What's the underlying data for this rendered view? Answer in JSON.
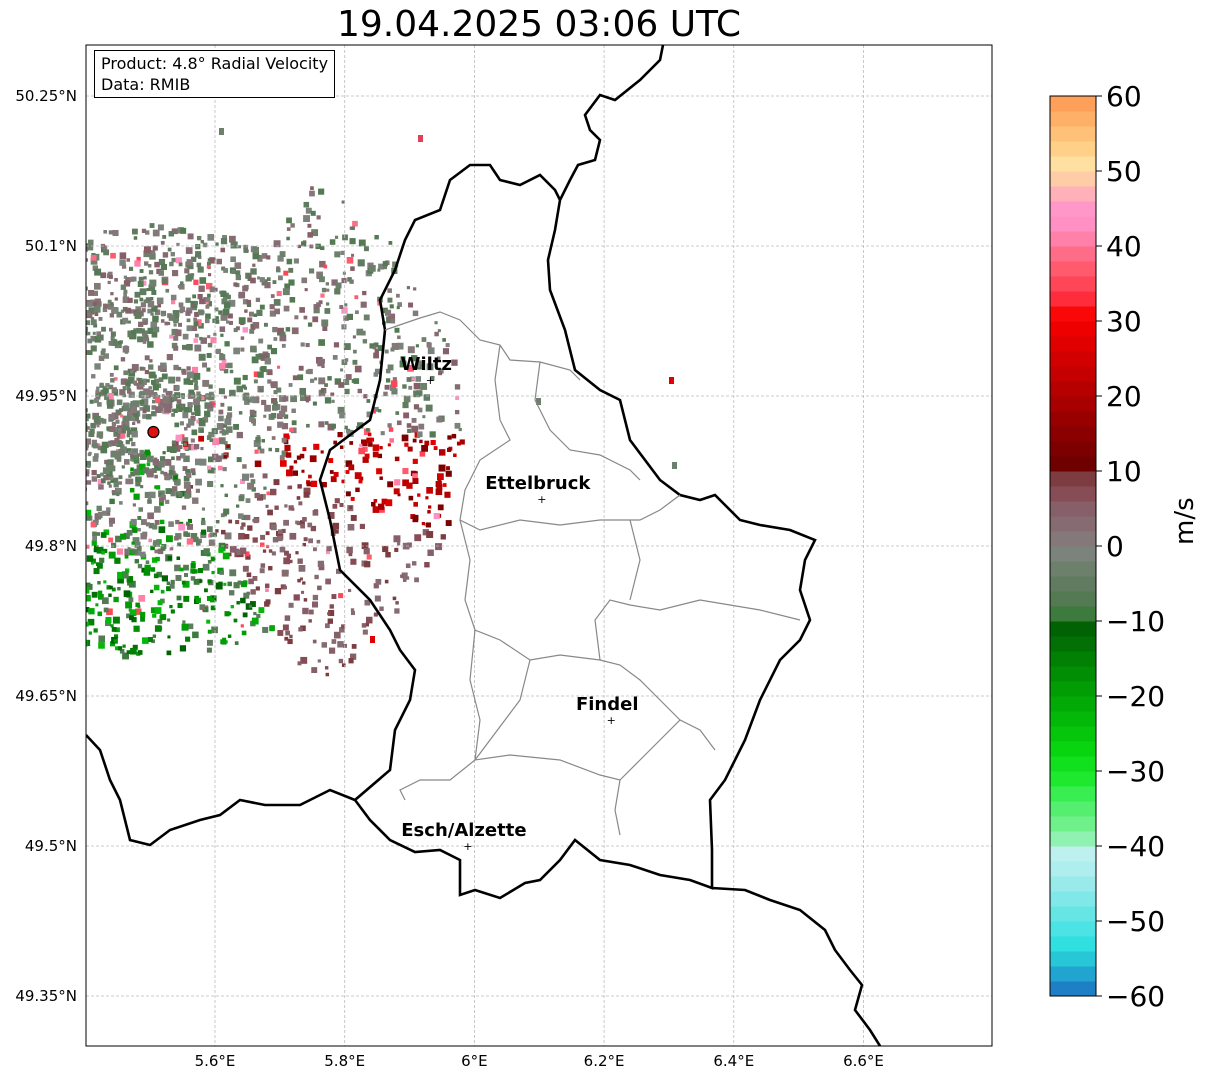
{
  "title": "19.04.2025 03:06 UTC",
  "info": {
    "product": "Product: 4.8° Radial Velocity",
    "source": "Data: RMIB"
  },
  "map": {
    "lon_range": [
      5.4,
      6.8
    ],
    "lat_range": [
      49.3,
      50.3
    ],
    "lat_ticks": [
      {
        "value": 50.25,
        "label": "50.25°N"
      },
      {
        "value": 50.1,
        "label": "50.1°N"
      },
      {
        "value": 49.95,
        "label": "49.95°N"
      },
      {
        "value": 49.8,
        "label": "49.8°N"
      },
      {
        "value": 49.65,
        "label": "49.65°N"
      },
      {
        "value": 49.5,
        "label": "49.5°N"
      },
      {
        "value": 49.35,
        "label": "49.35°N"
      }
    ],
    "lon_ticks": [
      {
        "value": 5.6,
        "label": "5.6°E"
      },
      {
        "value": 5.8,
        "label": "5.8°E"
      },
      {
        "value": 6.0,
        "label": "6°E"
      },
      {
        "value": 6.2,
        "label": "6.2°E"
      },
      {
        "value": 6.4,
        "label": "6.4°E"
      },
      {
        "value": 6.6,
        "label": "6.6°E"
      }
    ],
    "radar_site": {
      "lon": 5.505,
      "lat": 49.914
    },
    "cities": [
      {
        "name": "Wiltz",
        "lon": 5.932,
        "lat": 49.966
      },
      {
        "name": "Ettelbruck",
        "lon": 6.104,
        "lat": 49.847
      },
      {
        "name": "Findel",
        "lon": 6.211,
        "lat": 49.626
      },
      {
        "name": "Esch/Alzette",
        "lon": 5.99,
        "lat": 49.5
      }
    ]
  },
  "colorbar": {
    "label": "m/s",
    "range": [
      -60,
      60
    ],
    "ticks": [
      {
        "value": 60,
        "label": "60"
      },
      {
        "value": 50,
        "label": "50"
      },
      {
        "value": 40,
        "label": "40"
      },
      {
        "value": 30,
        "label": "30"
      },
      {
        "value": 20,
        "label": "20"
      },
      {
        "value": 10,
        "label": "10"
      },
      {
        "value": 0,
        "label": "0"
      },
      {
        "value": -10,
        "label": "−10"
      },
      {
        "value": -20,
        "label": "−20"
      },
      {
        "value": -30,
        "label": "−30"
      },
      {
        "value": -40,
        "label": "−40"
      },
      {
        "value": -50,
        "label": "−50"
      },
      {
        "value": -60,
        "label": "−60"
      }
    ],
    "colors": [
      "#1f7fc4",
      "#22a4d0",
      "#28c7d8",
      "#30dfe0",
      "#4be3e3",
      "#66e5e5",
      "#80e8e8",
      "#99ebeb",
      "#aeeeee",
      "#bff0f0",
      "#8ff2b0",
      "#70f08a",
      "#55ef70",
      "#38ee50",
      "#1ee92e",
      "#10e01e",
      "#08d410",
      "#05c60a",
      "#03b808",
      "#02aa06",
      "#029c05",
      "#028e04",
      "#028004",
      "#027004",
      "#016203",
      "#3d7a3e",
      "#537a53",
      "#607b60",
      "#6d806b",
      "#7b837c",
      "#857878",
      "#866c72",
      "#865f69",
      "#864d56",
      "#7c3c40",
      "#6e0000",
      "#7c0000",
      "#8a0000",
      "#980000",
      "#a80000",
      "#b60000",
      "#c40000",
      "#d20000",
      "#e00000",
      "#ee0000",
      "#fa0808",
      "#ff2c3c",
      "#ff4658",
      "#ff5a6e",
      "#ff6c88",
      "#ff80a8",
      "#ff90c4",
      "#ff98c8",
      "#ffb0b8",
      "#ffcca8",
      "#ffe0a0",
      "#ffd088",
      "#ffc078",
      "#ffb068",
      "#ffa05a"
    ]
  }
}
